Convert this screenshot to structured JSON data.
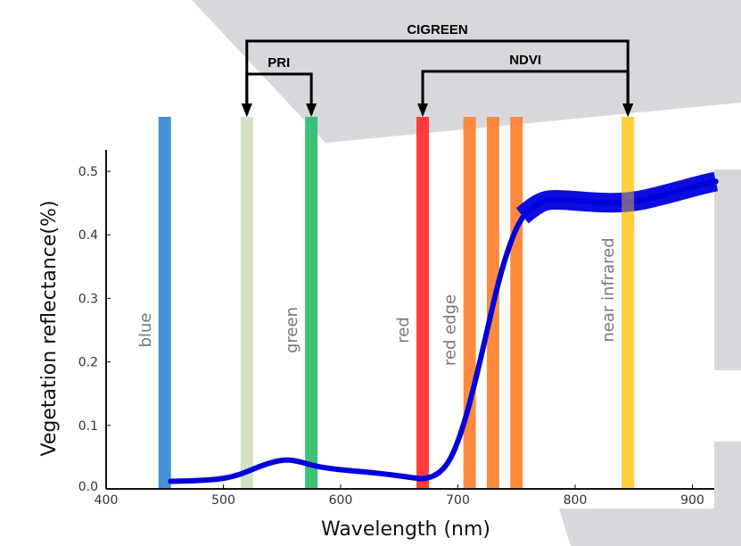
{
  "chart_data": {
    "type": "line",
    "xlabel": "Wavelength (nm)",
    "ylabel": "Vegetation reflectance(%)",
    "xlim": [
      400,
      920
    ],
    "ylim": [
      0,
      0.53
    ],
    "xticks": [
      "400",
      "500",
      "600",
      "700",
      "800",
      "900"
    ],
    "yticks": [
      "0.0",
      "0.1",
      "0.2",
      "0.3",
      "0.4",
      "0.5"
    ],
    "grid": false,
    "series": [
      {
        "color": "#0000dd",
        "x": [
          455,
          480,
          500,
          515,
          530,
          545,
          555,
          565,
          580,
          600,
          620,
          640,
          660,
          672,
          685,
          695,
          705,
          715,
          725,
          735,
          745,
          755,
          765,
          775,
          790,
          810,
          830,
          850,
          870,
          890,
          910,
          920
        ],
        "y": [
          0.012,
          0.013,
          0.016,
          0.023,
          0.035,
          0.044,
          0.046,
          0.043,
          0.035,
          0.03,
          0.027,
          0.023,
          0.018,
          0.015,
          0.025,
          0.05,
          0.1,
          0.17,
          0.25,
          0.33,
          0.39,
          0.43,
          0.445,
          0.455,
          0.455,
          0.452,
          0.45,
          0.452,
          0.46,
          0.47,
          0.48,
          0.484
        ]
      }
    ],
    "bands": [
      {
        "wavelength": 450,
        "color": "#3a8ccc",
        "label": "blue"
      },
      {
        "wavelength": 520,
        "color": "#cfe3c4",
        "label": ""
      },
      {
        "wavelength": 575,
        "color": "#33be72",
        "label": "green"
      },
      {
        "wavelength": 670,
        "color": "#ff3333",
        "label": "red"
      },
      {
        "wavelength": 710,
        "color": "#ff8433",
        "label": "red edge"
      },
      {
        "wavelength": 730,
        "color": "#ff8433",
        "label": ""
      },
      {
        "wavelength": 750,
        "color": "#ff8433",
        "label": ""
      },
      {
        "wavelength": 845,
        "color": "#ffcc33",
        "label": "near infrared"
      }
    ],
    "indices": [
      {
        "name": "CIGREEN",
        "from": 520,
        "to": 845
      },
      {
        "name": "PRI",
        "from": 520,
        "to": 575
      },
      {
        "name": "NDVI",
        "from": 670,
        "to": 845
      }
    ]
  }
}
